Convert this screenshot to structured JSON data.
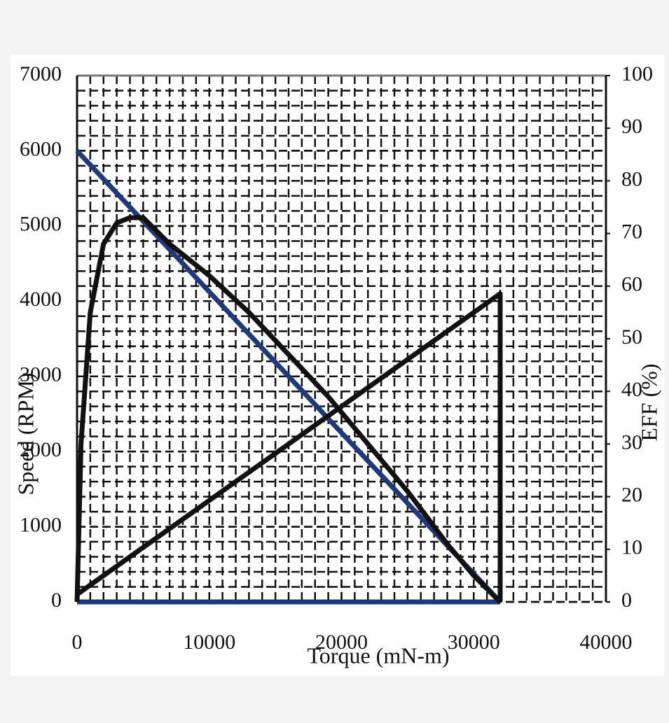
{
  "chart_data": {
    "type": "line",
    "x_label": "Torque (mN-m)",
    "y_label": "Speed (RPM)",
    "y2_label": "EFF (%)",
    "xlim": [
      0,
      40000
    ],
    "xticks": [
      0,
      10000,
      20000,
      30000,
      40000
    ],
    "ylim": [
      0,
      7000
    ],
    "yticks": [
      0,
      1000,
      2000,
      3000,
      4000,
      5000,
      6000,
      7000
    ],
    "y2lim": [
      0,
      100
    ],
    "y2ticks": [
      0,
      10,
      20,
      30,
      40,
      50,
      60,
      70,
      80,
      90,
      100
    ],
    "grid": true,
    "series": [
      {
        "color": "#1f3a7a",
        "x": [
          0,
          32000
        ],
        "values": [
          6000,
          0
        ]
      },
      {
        "color": "#1f3a7a",
        "x": [
          0,
          32000
        ],
        "values": [
          0,
          0
        ]
      },
      {
        "color": "#111111",
        "x": [
          0,
          32000,
          32000
        ],
        "values": [
          100,
          4100,
          0
        ]
      },
      {
        "color": "#111111",
        "axis": "y2",
        "x": [
          0,
          300,
          1000,
          2000,
          3000,
          4000,
          5000,
          7000,
          10000,
          13000,
          16000,
          19000,
          22000,
          25000,
          28000,
          30000,
          32000
        ],
        "values": [
          0,
          30,
          55,
          68,
          72,
          73,
          73,
          68,
          62,
          55,
          47,
          39,
          30,
          21,
          11,
          5,
          0
        ]
      }
    ]
  }
}
